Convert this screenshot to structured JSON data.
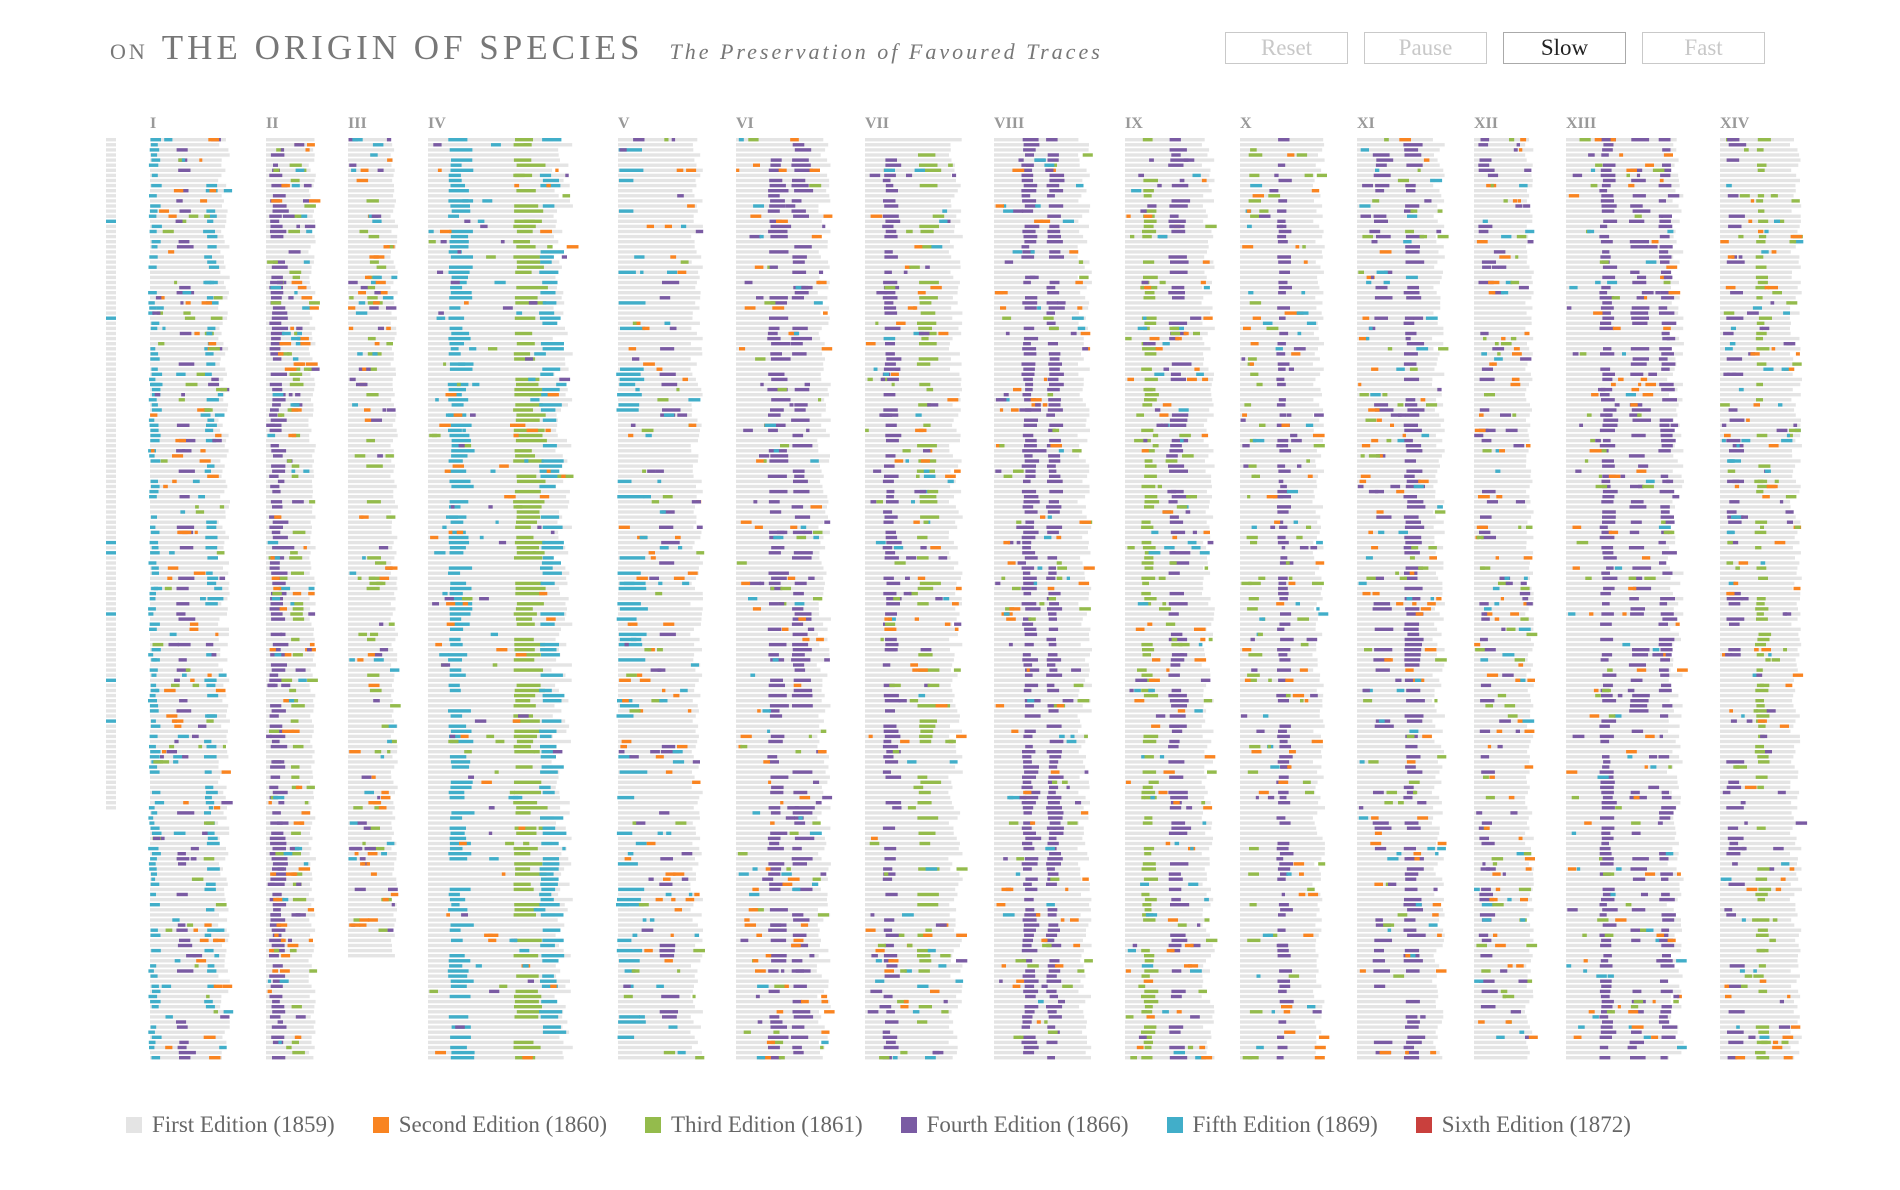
{
  "header": {
    "on": "ON",
    "title": "THE ORIGIN OF SPECIES",
    "subtitle": "The Preservation of Favoured Traces"
  },
  "controls": [
    {
      "label": "Reset",
      "active": false
    },
    {
      "label": "Pause",
      "active": false
    },
    {
      "label": "Slow",
      "active": true
    },
    {
      "label": "Fast",
      "active": false
    }
  ],
  "colors": {
    "first": "#e4e4e4",
    "second": "#f98421",
    "third": "#94bb4c",
    "fourth": "#7a5ba3",
    "fifth": "#41aec9",
    "sixth": "#c9403d"
  },
  "chart_data": {
    "type": "heatmap",
    "chapters": [
      "I",
      "II",
      "III",
      "IV",
      "V",
      "VI",
      "VII",
      "VIII",
      "IX",
      "X",
      "XI",
      "XII",
      "XIII",
      "XIV"
    ],
    "legend": [
      {
        "key": "first",
        "label": "First Edition (1859)"
      },
      {
        "key": "second",
        "label": "Second Edition (1860)"
      },
      {
        "key": "third",
        "label": "Third Edition (1861)"
      },
      {
        "key": "fourth",
        "label": "Fourth Edition (1866)"
      },
      {
        "key": "fifth",
        "label": "Fifth Edition (1869)"
      },
      {
        "key": "sixth",
        "label": "Sixth Edition (1872)"
      }
    ]
  }
}
